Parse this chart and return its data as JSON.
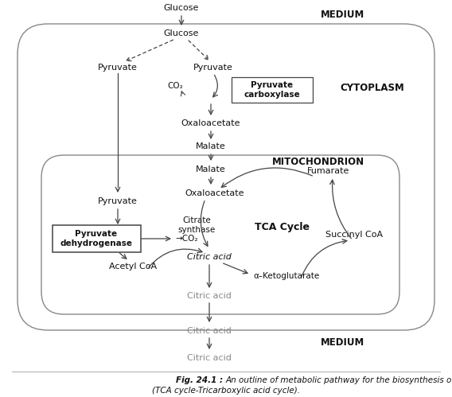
{
  "bg_color": "#ffffff",
  "border_color": "#444444",
  "text_color": "#111111",
  "gray_text": "#888888",
  "caption_bold": "Fig. 24.1 : ",
  "caption_rest": "An outline of metabolic pathway for the biosynthesis of citric acid\n(TCA cycle-Tricarboxylic acid cycle).",
  "labels": {
    "medium_top": "MEDIUM",
    "medium_bottom": "MEDIUM",
    "cytoplasm": "CYTOPLASM",
    "mitochondrion": "MITOCHONDRION",
    "glucose_top": "Glucose",
    "glucose_mid": "Glucose",
    "pyruvate_left_cyto": "Pyruvate",
    "pyruvate_right_cyto": "Pyruvate",
    "co2_cyto": "CO₂",
    "pyruvate_carboxylase": "Pyruvate\ncarboxylase",
    "oxaloacetate_cyto": "Oxaloacetate",
    "malate_cyto": "Malate",
    "malate_mito": "Malate",
    "fumarate": "Fumarate",
    "oxaloacetate_mito": "Oxaloacetate",
    "pyruvate_mito": "Pyruvate",
    "pyruvate_dehydrogenase": "Pyruvate\ndehydrogenase",
    "co2_mito": "→CO₂",
    "acetyl_coa": "Acetyl CoA",
    "citrate_synthase": "Citrate\nsynthase",
    "citric_acid_mito": "Citric acid",
    "tca_cycle": "TCA Cycle",
    "succinyl_coa": "Succinyl CoA",
    "alpha_ketoglutarate": "α–Ketoglutarate",
    "citric_acid_exit": "Citric acid",
    "citric_acid_bottom": "Citric acid"
  }
}
